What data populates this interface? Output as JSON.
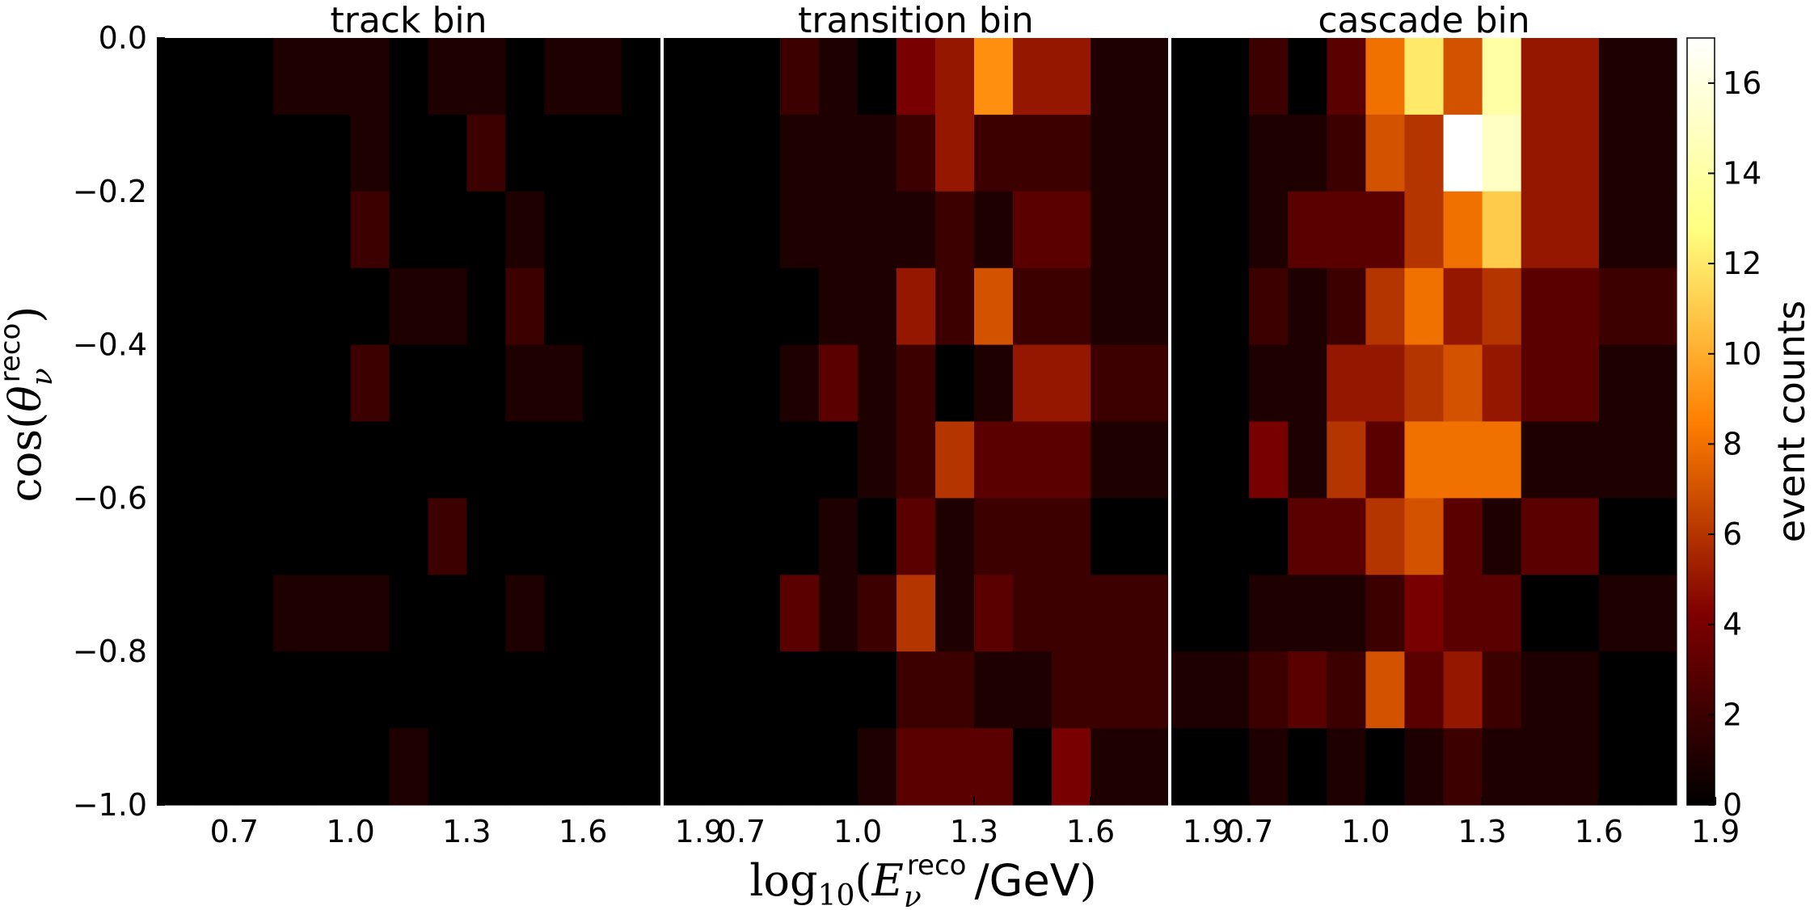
{
  "chart_data": {
    "type": "heatmap",
    "panels": [
      {
        "title": "track bin",
        "values": [
          [
            0,
            0,
            0,
            1,
            1,
            1,
            0,
            1,
            1,
            0,
            1,
            1,
            0
          ],
          [
            0,
            0,
            0,
            0,
            0,
            1,
            0,
            0,
            2,
            0,
            0,
            0,
            0
          ],
          [
            0,
            0,
            0,
            0,
            0,
            2,
            0,
            0,
            0,
            1,
            0,
            0,
            0
          ],
          [
            0,
            0,
            0,
            0,
            0,
            0,
            1,
            1,
            0,
            2,
            0,
            0,
            0
          ],
          [
            0,
            0,
            0,
            0,
            0,
            2,
            0,
            0,
            0,
            1,
            1,
            0,
            0
          ],
          [
            0,
            0,
            0,
            0,
            0,
            0,
            0,
            0,
            0,
            0,
            0,
            0,
            0
          ],
          [
            0,
            0,
            0,
            0,
            0,
            0,
            0,
            2,
            0,
            0,
            0,
            0,
            0
          ],
          [
            0,
            0,
            0,
            1,
            1,
            1,
            0,
            0,
            0,
            1,
            0,
            0,
            0
          ],
          [
            0,
            0,
            0,
            0,
            0,
            0,
            0,
            0,
            0,
            0,
            0,
            0,
            0
          ],
          [
            0,
            0,
            0,
            0,
            0,
            0,
            1,
            0,
            0,
            0,
            0,
            0,
            0
          ]
        ]
      },
      {
        "title": "transition bin",
        "values": [
          [
            0,
            0,
            0,
            2,
            1,
            0,
            4,
            5,
            9,
            5,
            5,
            1,
            1
          ],
          [
            0,
            0,
            0,
            1,
            1,
            1,
            2,
            5,
            2,
            2,
            2,
            1,
            1
          ],
          [
            0,
            0,
            0,
            1,
            1,
            1,
            1,
            2,
            1,
            3,
            3,
            1,
            1
          ],
          [
            0,
            0,
            0,
            0,
            1,
            1,
            5,
            2,
            7,
            2,
            2,
            1,
            1
          ],
          [
            0,
            0,
            0,
            1,
            3,
            1,
            2,
            0,
            1,
            5,
            5,
            2,
            2
          ],
          [
            0,
            0,
            0,
            0,
            0,
            1,
            2,
            6,
            3,
            3,
            3,
            1,
            1
          ],
          [
            0,
            0,
            0,
            0,
            1,
            0,
            3,
            1,
            2,
            2,
            2,
            0,
            0
          ],
          [
            0,
            0,
            0,
            3,
            1,
            2,
            6,
            1,
            3,
            2,
            2,
            2,
            2
          ],
          [
            0,
            0,
            0,
            0,
            0,
            0,
            2,
            2,
            1,
            1,
            2,
            2,
            2
          ],
          [
            0,
            0,
            0,
            0,
            0,
            1,
            3,
            3,
            3,
            0,
            4,
            1,
            1
          ]
        ]
      },
      {
        "title": "cascade bin",
        "values": [
          [
            0,
            0,
            2,
            0,
            3,
            8,
            12,
            7,
            14,
            5,
            5,
            1,
            1
          ],
          [
            0,
            0,
            1,
            1,
            2,
            7,
            6,
            17,
            15,
            5,
            5,
            1,
            1
          ],
          [
            0,
            0,
            1,
            3,
            3,
            3,
            6,
            8,
            11,
            5,
            5,
            1,
            1
          ],
          [
            0,
            0,
            2,
            1,
            2,
            6,
            8,
            5,
            6,
            3,
            3,
            2,
            2
          ],
          [
            0,
            0,
            1,
            1,
            5,
            5,
            6,
            7,
            5,
            3,
            3,
            1,
            1
          ],
          [
            0,
            0,
            4,
            1,
            6,
            3,
            8,
            8,
            8,
            1,
            1,
            1,
            1
          ],
          [
            0,
            0,
            0,
            3,
            3,
            6,
            7,
            3,
            1,
            3,
            3,
            0,
            0
          ],
          [
            0,
            0,
            1,
            1,
            1,
            2,
            4,
            3,
            3,
            0,
            0,
            1,
            1
          ],
          [
            1,
            1,
            2,
            3,
            2,
            7,
            3,
            5,
            2,
            1,
            1,
            0,
            0
          ],
          [
            0,
            0,
            1,
            0,
            1,
            0,
            1,
            2,
            1,
            1,
            1,
            0,
            0
          ]
        ]
      }
    ],
    "x_edges": [
      0.5,
      0.6,
      0.7,
      0.8,
      0.9,
      1.0,
      1.1,
      1.2,
      1.3,
      1.4,
      1.5,
      1.6,
      1.7,
      1.8
    ],
    "y_edges": [
      -1.0,
      -0.9,
      -0.8,
      -0.7,
      -0.6,
      -0.5,
      -0.4,
      -0.3,
      -0.2,
      -0.1,
      0.0
    ],
    "x_ticks": [
      "0.7",
      "1.0",
      "1.3",
      "1.6",
      "1.9"
    ],
    "y_ticks": [
      "0.0",
      "−0.2",
      "−0.4",
      "−0.6",
      "−0.8",
      "−1.0"
    ],
    "xlabel": "log₁₀(E_ν^reco /GeV)",
    "ylabel": "cos(θ_ν^reco)",
    "colorbar": {
      "label": "event counts",
      "ticks": [
        "0",
        "2",
        "4",
        "6",
        "8",
        "10",
        "12",
        "14",
        "16"
      ],
      "range": [
        0,
        17
      ],
      "colormap": "afmhot"
    }
  },
  "labels": {
    "xlabel_prefix": "log",
    "xlabel_sub": "10",
    "xlabel_var": "E",
    "xlabel_varsub": "ν",
    "xlabel_sup": "reco",
    "xlabel_unit": "/GeV",
    "ylabel_func": "cos",
    "ylabel_var": "θ",
    "ylabel_varsub": "ν",
    "ylabel_sup": "reco"
  }
}
